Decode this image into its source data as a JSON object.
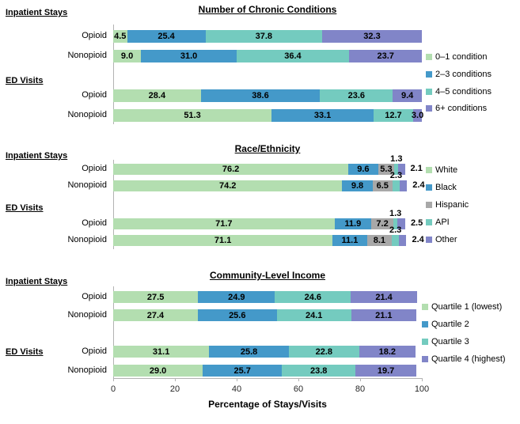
{
  "figure": {
    "xlabel": "Percentage of Stays/Visits",
    "x_tick_labels": [
      "0",
      "20",
      "40",
      "60",
      "80",
      "100"
    ],
    "x_range": [
      0,
      100
    ]
  },
  "colors": {
    "green": "#b3deb0",
    "blue": "#4499c9",
    "teal": "#74cbbf",
    "purple": "#8185c8",
    "gray": "#a8a8a8",
    "axis": "#b3b3b3",
    "tick_text": "#262626"
  },
  "chart_data": [
    {
      "type": "bar",
      "orientation": "horizontal",
      "stacked": true,
      "title": "Number of Chronic Conditions",
      "xlim": [
        0,
        100
      ],
      "legend_position": "right",
      "row_groups": [
        {
          "label": "Inpatient Stays",
          "rows": [
            "Opioid",
            "Nonopioid"
          ]
        },
        {
          "label": "ED Visits",
          "rows": [
            "Opioid",
            "Nonopioid"
          ]
        }
      ],
      "series": [
        {
          "name": "0–1 condition",
          "color": "green",
          "label_pos": "inside",
          "values": [
            4.5,
            9.0,
            28.4,
            51.3
          ],
          "labels": [
            "4.5",
            "9.0",
            "28.4",
            "51.3"
          ]
        },
        {
          "name": "2–3 conditions",
          "color": "blue",
          "label_pos": "inside",
          "values": [
            25.4,
            31.0,
            38.6,
            33.1
          ],
          "labels": [
            "25.4",
            "31.0",
            "38.6",
            "33.1"
          ]
        },
        {
          "name": "4–5 conditions",
          "color": "teal",
          "label_pos": "inside",
          "values": [
            37.8,
            36.4,
            23.6,
            12.7
          ],
          "labels": [
            "37.8",
            "36.4",
            "23.6",
            "12.7"
          ]
        },
        {
          "name": "6+ conditions",
          "color": "purple",
          "label_pos": "inside",
          "values": [
            32.3,
            23.7,
            9.4,
            3.0
          ],
          "labels": [
            "32.3",
            "23.7",
            "9.4",
            "3.0"
          ]
        }
      ]
    },
    {
      "type": "bar",
      "orientation": "horizontal",
      "stacked": true,
      "title": "Race/Ethnicity",
      "xlim": [
        0,
        100
      ],
      "legend_position": "right",
      "row_groups": [
        {
          "label": "Inpatient Stays",
          "rows": [
            "Opioid",
            "Nonopioid"
          ]
        },
        {
          "label": "ED Visits",
          "rows": [
            "Opioid",
            "Nonopioid"
          ]
        }
      ],
      "series": [
        {
          "name": "White",
          "color": "green",
          "label_pos": "inside",
          "values": [
            76.2,
            74.2,
            71.7,
            71.1
          ],
          "labels": [
            "76.2",
            "74.2",
            "71.7",
            "71.1"
          ]
        },
        {
          "name": "Black",
          "color": "blue",
          "label_pos": "inside",
          "values": [
            9.6,
            9.8,
            11.9,
            11.1
          ],
          "labels": [
            "9.6",
            "9.8",
            "11.9",
            "11.1"
          ]
        },
        {
          "name": "Hispanic",
          "color": "gray",
          "label_pos": "inside",
          "values": [
            5.3,
            6.5,
            7.2,
            8.1
          ],
          "labels": [
            "5.3",
            "6.5",
            "7.2",
            "8.1"
          ]
        },
        {
          "name": "API",
          "color": "teal",
          "label_pos": "above",
          "values": [
            1.3,
            2.3,
            1.3,
            2.3
          ],
          "labels": [
            "1.3",
            "2.3",
            "1.3",
            "2.3"
          ]
        },
        {
          "name": "Other",
          "color": "purple",
          "label_pos": "right",
          "values": [
            2.1,
            2.4,
            2.5,
            2.4
          ],
          "labels": [
            "2.1",
            "2.4",
            "2.5",
            "2.4"
          ]
        }
      ]
    },
    {
      "type": "bar",
      "orientation": "horizontal",
      "stacked": true,
      "title": "Community-Level Income",
      "xlim": [
        0,
        100
      ],
      "legend_position": "right",
      "row_groups": [
        {
          "label": "Inpatient Stays",
          "rows": [
            "Opioid",
            "Nonopioid"
          ]
        },
        {
          "label": "ED Visits",
          "rows": [
            "Opioid",
            "Nonopioid"
          ]
        }
      ],
      "series": [
        {
          "name": "Quartile 1 (lowest)",
          "color": "green",
          "label_pos": "inside",
          "values": [
            27.5,
            27.4,
            31.1,
            29.0
          ],
          "labels": [
            "27.5",
            "27.4",
            "31.1",
            "29.0"
          ]
        },
        {
          "name": "Quartile 2",
          "color": "blue",
          "label_pos": "inside",
          "values": [
            24.9,
            25.6,
            25.8,
            25.7
          ],
          "labels": [
            "24.9",
            "25.6",
            "25.8",
            "25.7"
          ]
        },
        {
          "name": "Quartile 3",
          "color": "teal",
          "label_pos": "inside",
          "values": [
            24.6,
            24.1,
            22.8,
            23.8
          ],
          "labels": [
            "24.6",
            "24.1",
            "22.8",
            "23.8"
          ]
        },
        {
          "name": "Quartile 4 (highest)",
          "color": "purple",
          "label_pos": "inside",
          "values": [
            21.4,
            21.1,
            18.2,
            19.7
          ],
          "labels": [
            "21.4",
            "21.1",
            "18.2",
            "19.7"
          ]
        }
      ]
    }
  ]
}
